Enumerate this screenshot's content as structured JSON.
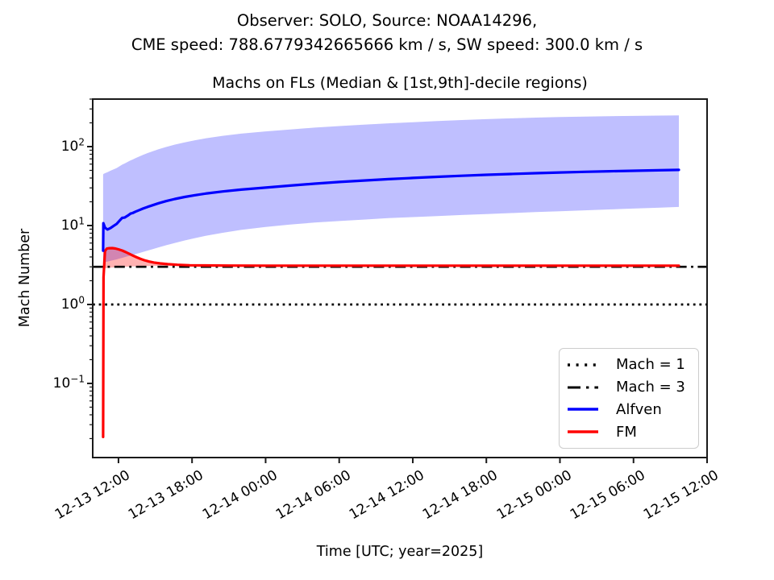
{
  "figure": {
    "suptitle_line1": "Observer: SOLO, Source: NOAA14296,",
    "suptitle_line2": "CME speed: 788.6779342665666 km / s, SW speed: 300.0 km / s",
    "axes_title": "Machs on FLs (Median & [1st,9th]-decile regions)",
    "xlabel": "Time [UTC; year=2025]",
    "ylabel": "Mach Number"
  },
  "chart_data": {
    "type": "line",
    "title": "Machs on FLs (Median & [1st,9th]-decile regions)",
    "xlabel": "Time [UTC; year=2025]",
    "ylabel": "Mach Number",
    "yscale": "log",
    "x_unit": "hours since 2025-12-13 12:00 UTC",
    "xlim": [
      -2.1,
      48
    ],
    "ylim": [
      0.0115,
      400
    ],
    "grid": false,
    "x_ticks": [
      {
        "t": 0,
        "label": "12-13 12:00"
      },
      {
        "t": 6,
        "label": "12-13 18:00"
      },
      {
        "t": 12,
        "label": "12-14 00:00"
      },
      {
        "t": 18,
        "label": "12-14 06:00"
      },
      {
        "t": 24,
        "label": "12-14 12:00"
      },
      {
        "t": 30,
        "label": "12-14 18:00"
      },
      {
        "t": 36,
        "label": "12-15 00:00"
      },
      {
        "t": 42,
        "label": "12-15 06:00"
      },
      {
        "t": 48,
        "label": "12-15 12:00"
      }
    ],
    "y_ticks": [
      {
        "value": 100,
        "label_base": "10",
        "label_exp": "2"
      },
      {
        "value": 10,
        "label_base": "10",
        "label_exp": "1"
      },
      {
        "value": 1,
        "label_base": "10",
        "label_exp": "0"
      },
      {
        "value": 0.1,
        "label_base": "10",
        "label_exp": "−1"
      }
    ],
    "hlines": [
      {
        "y": 1.0,
        "style": "dotted",
        "color": "#000000",
        "legend_label": "Mach = 1"
      },
      {
        "y": 3.0,
        "style": "dashdot",
        "color": "#000000",
        "legend_label": "Mach = 3"
      }
    ],
    "series": [
      {
        "name": "Alfven",
        "color": "#0000ff",
        "band_opacity": 0.25,
        "x": [
          -1.25,
          -1.23,
          -1.1,
          -0.9,
          -0.65,
          -0.4,
          -0.15,
          0.1,
          0.3,
          0.5,
          0.75,
          1.0,
          1.15,
          1.4,
          1.7,
          2.0,
          2.4,
          2.8,
          3.3,
          3.9,
          4.6,
          5.4,
          6.2,
          7.2,
          8.5,
          10,
          12,
          14,
          16,
          18,
          20,
          22,
          24,
          26,
          28,
          30,
          32,
          34,
          36,
          38,
          40,
          42,
          44,
          45.7
        ],
        "median": [
          4.8,
          10.7,
          9.4,
          8.9,
          9.3,
          9.9,
          10.5,
          11.6,
          12.5,
          12.6,
          13.3,
          14.2,
          14.4,
          15.0,
          15.7,
          16.4,
          17.3,
          18.1,
          19.2,
          20.4,
          21.7,
          23.0,
          24.2,
          25.5,
          27.0,
          28.5,
          30.2,
          32.1,
          33.9,
          35.6,
          37.2,
          38.7,
          40.1,
          41.4,
          42.7,
          43.9,
          45.0,
          46.0,
          47.0,
          47.9,
          48.7,
          49.4,
          50.1,
          50.7
        ],
        "decile_low": [
          3.35,
          3.4,
          3.45,
          3.5,
          3.57,
          3.65,
          3.73,
          3.82,
          3.9,
          3.98,
          4.08,
          4.18,
          4.24,
          4.35,
          4.49,
          4.63,
          4.83,
          5.03,
          5.3,
          5.63,
          6.02,
          6.47,
          6.92,
          7.45,
          8.1,
          8.8,
          9.6,
          10.3,
          10.9,
          11.4,
          11.9,
          12.4,
          12.8,
          13.2,
          13.6,
          14.0,
          14.4,
          14.8,
          15.2,
          15.6,
          16.0,
          16.4,
          16.8,
          17.2
        ],
        "decile_high": [
          44,
          45,
          46,
          47.5,
          49.5,
          51.5,
          53.5,
          56.5,
          59,
          61,
          64,
          67,
          68.5,
          71.5,
          75,
          78.5,
          83,
          87.5,
          93,
          99,
          106,
          113,
          120,
          128,
          137,
          146,
          156,
          165,
          174,
          182,
          190,
          197,
          204,
          211,
          217,
          223,
          228,
          233,
          237,
          240,
          243,
          245,
          247,
          248
        ]
      },
      {
        "name": "FM",
        "color": "#ff0000",
        "band_opacity": 0.3,
        "x": [
          -1.25,
          -1.22,
          -1.1,
          -0.95,
          -0.75,
          -0.5,
          -0.25,
          0,
          0.3,
          0.6,
          0.9,
          1.2,
          1.5,
          1.8,
          2.1,
          2.5,
          2.9,
          3.4,
          4.0,
          4.8,
          5.8,
          7,
          9,
          12,
          16,
          20,
          25,
          30,
          36,
          42,
          45.7
        ],
        "median": [
          0.021,
          2.2,
          4.75,
          5.1,
          5.17,
          5.18,
          5.12,
          5.0,
          4.82,
          4.6,
          4.37,
          4.15,
          3.95,
          3.78,
          3.64,
          3.5,
          3.4,
          3.31,
          3.24,
          3.18,
          3.14,
          3.12,
          3.11,
          3.1,
          3.1,
          3.1,
          3.1,
          3.1,
          3.1,
          3.1,
          3.1
        ],
        "decile_low": [
          0.021,
          2.0,
          2.88,
          2.9,
          2.92,
          2.94,
          2.96,
          2.98,
          3.0,
          3.01,
          3.02,
          3.03,
          3.04,
          3.05,
          3.06,
          3.07,
          3.08,
          3.09,
          3.1,
          3.1,
          3.1,
          3.1,
          3.1,
          3.1,
          3.1,
          3.1,
          3.1,
          3.1,
          3.1,
          3.1,
          3.1
        ],
        "decile_high": [
          0.021,
          2.2,
          4.75,
          5.1,
          5.17,
          5.18,
          5.12,
          5.0,
          4.82,
          4.6,
          4.37,
          4.15,
          3.95,
          3.78,
          3.64,
          3.5,
          3.4,
          3.31,
          3.24,
          3.18,
          3.14,
          3.12,
          3.11,
          3.1,
          3.1,
          3.1,
          3.1,
          3.1,
          3.1,
          3.1,
          3.1
        ]
      }
    ],
    "legend": {
      "position": "lower-right",
      "entries": [
        {
          "label": "Mach = 1",
          "color": "#000000",
          "style": "dotted"
        },
        {
          "label": "Mach = 3",
          "color": "#000000",
          "style": "dashdot"
        },
        {
          "label": "Alfven",
          "color": "#0000ff",
          "style": "solid"
        },
        {
          "label": "FM",
          "color": "#ff0000",
          "style": "solid"
        }
      ]
    },
    "colors": {
      "alfven": "#0000ff",
      "fm": "#ff0000",
      "reference_lines": "#000000",
      "spine": "#1a1a1a"
    }
  }
}
